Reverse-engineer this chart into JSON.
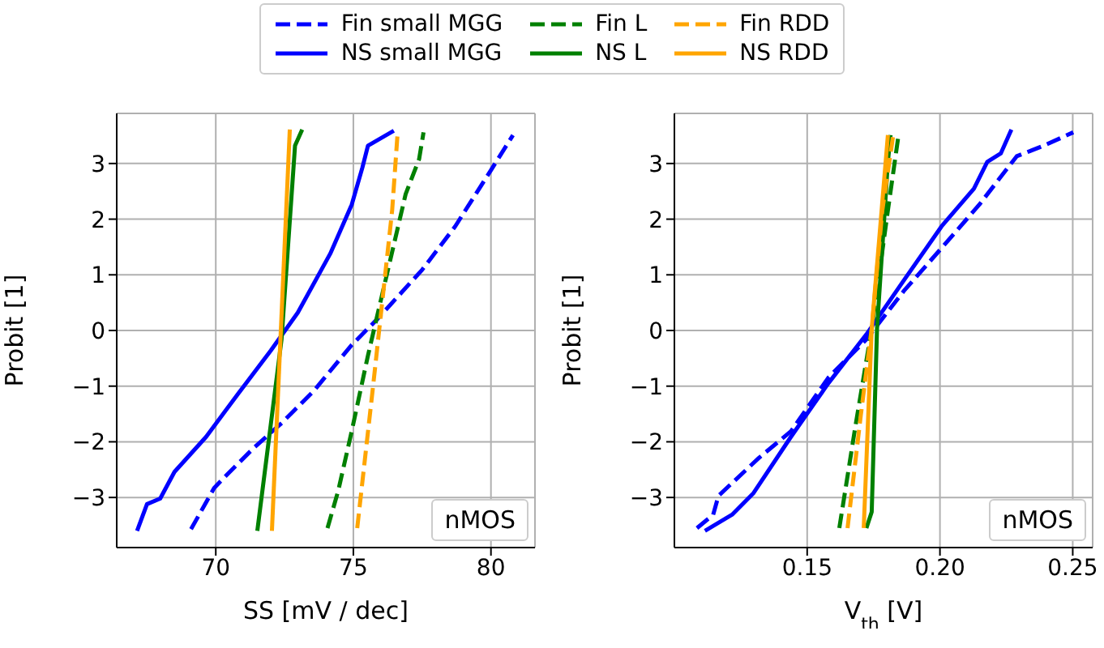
{
  "chart_data": [
    {
      "type": "line",
      "xlabel": "SS [mV / dec]",
      "ylabel": "Probit [1]",
      "xlim": [
        66.4,
        81.6
      ],
      "xticks": [
        70,
        75,
        80
      ],
      "ylim": [
        -3.9,
        3.9
      ],
      "yticks": [
        -3,
        -2,
        -1,
        0,
        1,
        2,
        3
      ],
      "grid": true,
      "legend": "top",
      "annotations": [
        "nMOS"
      ],
      "series": [
        {
          "name": "Fin small MGG",
          "color": "#0000ff",
          "line_style": "dashed",
          "x": [
            69.1,
            69.94,
            70.43,
            71.4,
            72.4,
            73.57,
            74.94,
            75.9,
            77.5,
            78.7,
            80.0,
            80.8
          ],
          "values": [
            -3.57,
            -2.83,
            -2.58,
            -2.1,
            -1.66,
            -1.08,
            -0.26,
            0.22,
            1.09,
            1.87,
            2.88,
            3.51
          ]
        },
        {
          "name": "NS small MGG",
          "color": "#0000ff",
          "line_style": "solid",
          "x": [
            67.14,
            67.5,
            67.98,
            68.5,
            69.65,
            70.82,
            72.0,
            72.98,
            74.16,
            74.94,
            75.33,
            75.53,
            76.47
          ],
          "values": [
            -3.6,
            -3.12,
            -3.02,
            -2.54,
            -1.91,
            -1.13,
            -0.36,
            0.32,
            1.38,
            2.26,
            2.93,
            3.32,
            3.59
          ]
        },
        {
          "name": "Fin L",
          "color": "#008000",
          "line_style": "dashed",
          "x": [
            74.06,
            74.45,
            74.94,
            75.53,
            76.12,
            76.9,
            77.39,
            77.55
          ],
          "values": [
            -3.55,
            -2.88,
            -1.81,
            -0.45,
            0.8,
            2.45,
            3.08,
            3.56
          ]
        },
        {
          "name": "NS L",
          "color": "#008000",
          "line_style": "solid",
          "x": [
            71.51,
            72.39,
            72.88,
            73.14
          ],
          "values": [
            -3.6,
            -0.16,
            3.32,
            3.61
          ]
        },
        {
          "name": "Fin RDD",
          "color": "#ffa500",
          "line_style": "dashed",
          "x": [
            75.14,
            75.73,
            76.41,
            76.61
          ],
          "values": [
            -3.55,
            -0.94,
            2.16,
            3.56
          ]
        },
        {
          "name": "NS RDD",
          "color": "#ffa500",
          "line_style": "solid",
          "x": [
            72.04,
            72.69
          ],
          "values": [
            -3.6,
            3.61
          ]
        }
      ]
    },
    {
      "type": "line",
      "xlabel": "V$_{th}$ [V]",
      "ylabel": "Probit [1]",
      "xlim": [
        0.1,
        0.2575
      ],
      "xticks": [
        0.15,
        {
          "value": 0.2,
          "label": "0.20"
        },
        0.25
      ],
      "ylim": [
        -3.9,
        3.9
      ],
      "yticks": [
        -3,
        -2,
        -1,
        0,
        1,
        2,
        3
      ],
      "grid": true,
      "annotations": [
        "nMOS"
      ],
      "series": [
        {
          "color": "#0000ff",
          "line_style": "dashed",
          "x": [
            0.1085,
            0.1146,
            0.1166,
            0.1318,
            0.1439,
            0.1581,
            0.1723,
            0.1864,
            0.2006,
            0.2148,
            0.2289,
            0.2391,
            0.2502
          ],
          "values": [
            -3.55,
            -3.31,
            -2.97,
            -2.29,
            -1.81,
            -0.84,
            -0.16,
            0.71,
            1.48,
            2.26,
            3.13,
            3.32,
            3.56
          ]
        },
        {
          "color": "#0000ff",
          "line_style": "solid",
          "x": [
            0.1115,
            0.1217,
            0.1298,
            0.1439,
            0.1581,
            0.1723,
            0.1864,
            0.2006,
            0.2128,
            0.2178,
            0.2229,
            0.2269
          ],
          "values": [
            -3.6,
            -3.31,
            -2.92,
            -1.91,
            -0.94,
            -0.07,
            0.9,
            1.87,
            2.55,
            3.03,
            3.18,
            3.61
          ]
        },
        {
          "color": "#008000",
          "line_style": "dashed",
          "x": [
            0.1621,
            0.1682,
            0.1743,
            0.1804,
            0.1844
          ],
          "values": [
            -3.55,
            -1.71,
            0.03,
            2.16,
            3.51
          ]
        },
        {
          "color": "#008000",
          "line_style": "solid",
          "x": [
            0.1723,
            0.1743,
            0.1763,
            0.1804,
            0.1814
          ],
          "values": [
            -3.55,
            -3.26,
            0.03,
            3.03,
            3.51
          ]
        },
        {
          "color": "#ffa500",
          "line_style": "dashed",
          "x": [
            0.1652,
            0.1702,
            0.1743,
            0.1783,
            0.1824
          ],
          "values": [
            -3.55,
            -1.52,
            0.03,
            2.16,
            3.51
          ]
        },
        {
          "color": "#ffa500",
          "line_style": "solid",
          "x": [
            0.1713,
            0.1743,
            0.1804
          ],
          "values": [
            -3.55,
            0.03,
            3.51
          ]
        }
      ]
    }
  ]
}
